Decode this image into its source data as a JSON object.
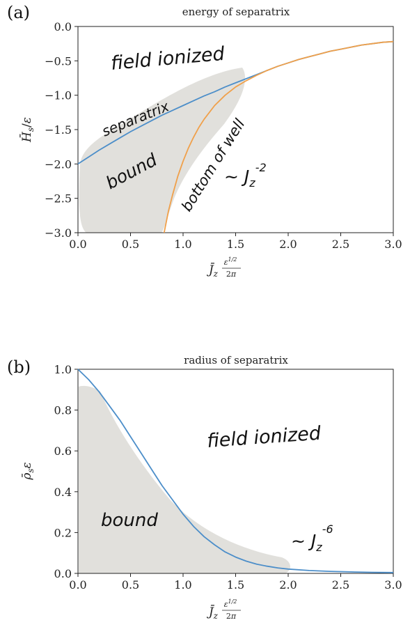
{
  "chart_data": [
    {
      "type": "line",
      "panel_label": "(a)",
      "title": "energy of separatrix",
      "xlabel": "J̄_z ε^{1/2} / 2π",
      "ylabel": "H̄_s / ε",
      "xlim": [
        0.0,
        3.0
      ],
      "ylim": [
        -3.0,
        0.0
      ],
      "xticks": [
        "0.0",
        "0.5",
        "1.0",
        "1.5",
        "2.0",
        "2.5",
        "3.0"
      ],
      "yticks": [
        "0.0",
        "−0.5",
        "−1.0",
        "−1.5",
        "−2.0",
        "−2.5",
        "−3.0"
      ],
      "grid": false,
      "series": [
        {
          "color": "#4c8ec9",
          "x": [
            0.0,
            0.1,
            0.2,
            0.3,
            0.4,
            0.5,
            0.6,
            0.7,
            0.8,
            0.9,
            1.0,
            1.1,
            1.2,
            1.3,
            1.4,
            1.5,
            1.6,
            1.7,
            1.8,
            1.9,
            2.0,
            2.1,
            2.2,
            2.3,
            2.4,
            2.5,
            2.6,
            2.7,
            2.8,
            2.9,
            3.0
          ],
          "y": [
            -2.0,
            -1.9,
            -1.8,
            -1.71,
            -1.62,
            -1.53,
            -1.45,
            -1.37,
            -1.29,
            -1.22,
            -1.15,
            -1.08,
            -1.01,
            -0.95,
            -0.88,
            -0.82,
            -0.76,
            -0.7,
            -0.64,
            -0.58,
            -0.53,
            -0.48,
            -0.44,
            -0.4,
            -0.36,
            -0.33,
            -0.3,
            -0.27,
            -0.25,
            -0.23,
            -0.22
          ]
        },
        {
          "color": "#f0a04a",
          "x": [
            0.82,
            0.86,
            0.9,
            0.95,
            1.0,
            1.05,
            1.1,
            1.15,
            1.2,
            1.3,
            1.4,
            1.5,
            1.6,
            1.7,
            1.8,
            1.9,
            2.0,
            2.1,
            2.2,
            2.3,
            2.4,
            2.5,
            2.6,
            2.7,
            2.8,
            2.9,
            3.0
          ],
          "y": [
            -3.0,
            -2.69,
            -2.45,
            -2.18,
            -1.96,
            -1.77,
            -1.61,
            -1.47,
            -1.35,
            -1.15,
            -1.0,
            -0.88,
            -0.79,
            -0.71,
            -0.64,
            -0.58,
            -0.53,
            -0.48,
            -0.44,
            -0.4,
            -0.36,
            -0.33,
            -0.3,
            -0.27,
            -0.25,
            -0.23,
            -0.22
          ]
        }
      ],
      "annotations": [
        "field ionized",
        "separatrix",
        "bottom of well",
        "bound",
        "~ J_z^-2"
      ]
    },
    {
      "type": "line",
      "panel_label": "(b)",
      "title": "radius of separatrix",
      "xlabel": "J̄_z ε^{1/2} / 2π",
      "ylabel": "ρ̄_s ε",
      "xlim": [
        0.0,
        3.0
      ],
      "ylim": [
        0.0,
        1.0
      ],
      "xticks": [
        "0.0",
        "0.5",
        "1.0",
        "1.5",
        "2.0",
        "2.5",
        "3.0"
      ],
      "yticks": [
        "1.0",
        "0.8",
        "0.6",
        "0.4",
        "0.2",
        "0.0"
      ],
      "grid": false,
      "series": [
        {
          "color": "#4c8ec9",
          "x": [
            0.0,
            0.1,
            0.2,
            0.3,
            0.4,
            0.5,
            0.6,
            0.7,
            0.8,
            0.9,
            1.0,
            1.1,
            1.2,
            1.3,
            1.4,
            1.5,
            1.6,
            1.7,
            1.8,
            1.9,
            2.0,
            2.2,
            2.4,
            2.6,
            2.8,
            3.0
          ],
          "y": [
            1.0,
            0.95,
            0.89,
            0.82,
            0.75,
            0.67,
            0.59,
            0.51,
            0.43,
            0.36,
            0.29,
            0.23,
            0.18,
            0.14,
            0.105,
            0.08,
            0.06,
            0.045,
            0.035,
            0.027,
            0.021,
            0.014,
            0.01,
            0.007,
            0.005,
            0.004
          ]
        }
      ],
      "annotations": [
        "field ionized",
        "bound",
        "~ J_z^-6"
      ]
    }
  ]
}
